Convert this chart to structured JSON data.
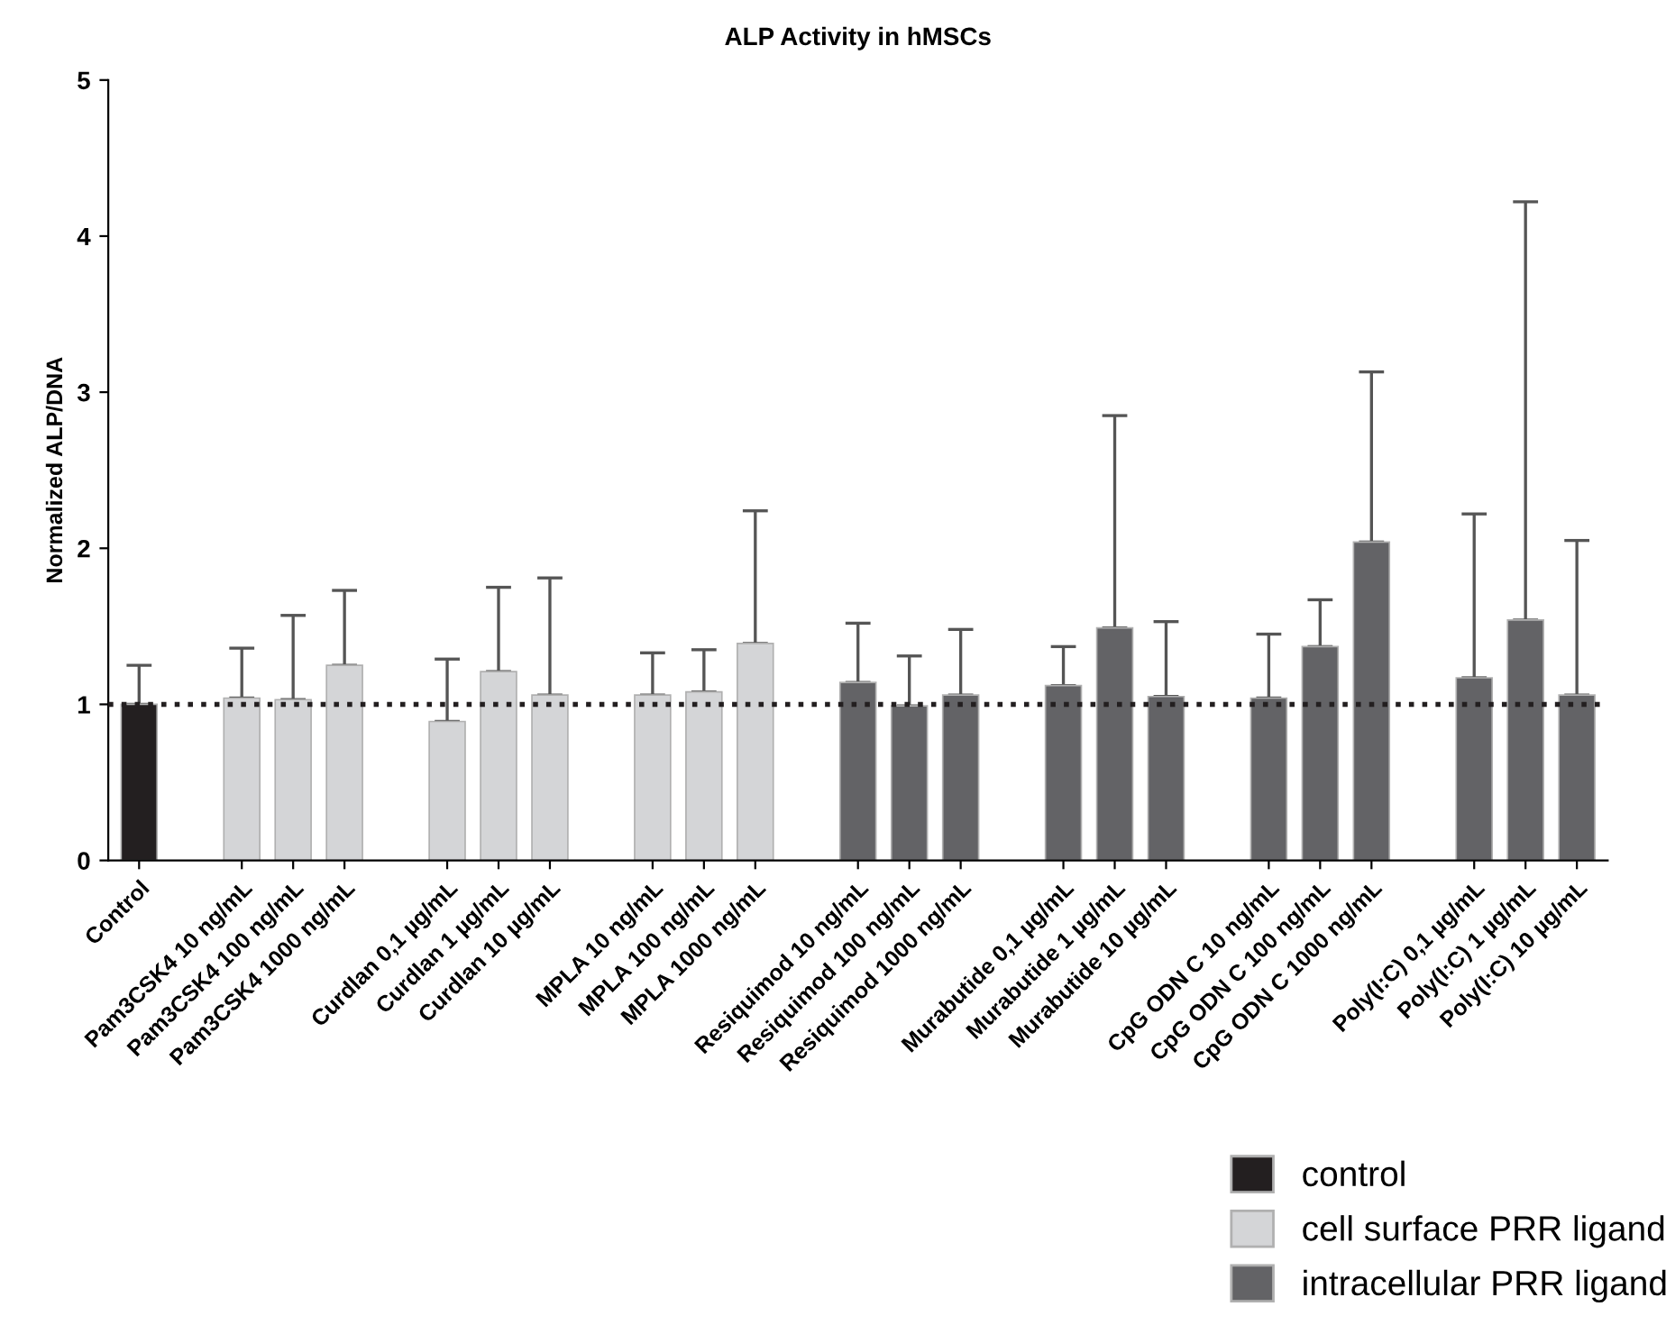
{
  "chart_data": {
    "type": "bar",
    "title": "ALP Activity in hMSCs",
    "ylabel": "Normalized ALP/DNA",
    "categories": [
      "Control",
      null,
      "Pam3CSK4 10 ng/mL",
      "Pam3CSK4 100 ng/mL",
      "Pam3CSK4 1000 ng/mL",
      null,
      "Curdlan 0,1 µg/mL",
      "Curdlan 1 µg/mL",
      "Curdlan 10 µg/mL",
      null,
      "MPLA 10 ng/mL",
      "MPLA 100 ng/mL",
      "MPLA 1000 ng/mL",
      null,
      "Resiquimod 10 ng/mL",
      "Resiquimod 100 ng/mL",
      "Resiquimod 1000 ng/mL",
      null,
      "Murabutide 0,1 µg/mL",
      "Murabutide 1 µg/mL",
      "Murabutide 10 µg/mL",
      null,
      "CpG ODN C 10 ng/mL",
      "CpG ODN C 100 ng/mL",
      "CpG ODN C 1000 ng/mL",
      null,
      "Poly(I:C) 0,1 µg/mL",
      "Poly(I:C) 1 µg/mL",
      "Poly(I:C) 10 µg/mL"
    ],
    "series": [
      {
        "name": "control",
        "color": "#231f20",
        "values": [
          1.0,
          null,
          null,
          null,
          null,
          null,
          null,
          null,
          null,
          null,
          null,
          null,
          null,
          null,
          null,
          null,
          null,
          null,
          null,
          null,
          null,
          null,
          null,
          null,
          null,
          null,
          null,
          null,
          null
        ],
        "errors": [
          [
            1.0,
            1.25
          ],
          null,
          null,
          null,
          null,
          null,
          null,
          null,
          null,
          null,
          null,
          null,
          null,
          null,
          null,
          null,
          null,
          null,
          null,
          null,
          null,
          null,
          null,
          null,
          null,
          null,
          null,
          null,
          null
        ]
      },
      {
        "name": "cell surface PRR ligand",
        "color": "#d4d5d7",
        "values": [
          null,
          null,
          1.04,
          1.03,
          1.25,
          null,
          0.89,
          1.21,
          1.06,
          null,
          1.06,
          1.08,
          1.39,
          null,
          null,
          null,
          null,
          null,
          null,
          null,
          null,
          null,
          null,
          null,
          null,
          null,
          null,
          null,
          null
        ],
        "errors": [
          null,
          null,
          [
            1.04,
            1.36
          ],
          [
            1.03,
            1.57
          ],
          [
            1.25,
            1.73
          ],
          null,
          [
            0.89,
            1.29
          ],
          [
            1.21,
            1.75
          ],
          [
            1.06,
            1.81
          ],
          null,
          [
            1.06,
            1.33
          ],
          [
            1.08,
            1.35
          ],
          [
            1.39,
            2.24
          ],
          null,
          null,
          null,
          null,
          null,
          null,
          null,
          null,
          null,
          null,
          null,
          null,
          null,
          null,
          null,
          null
        ]
      },
      {
        "name": "intracellular PRR ligand",
        "color": "#636366",
        "values": [
          null,
          null,
          null,
          null,
          null,
          null,
          null,
          null,
          null,
          null,
          null,
          null,
          null,
          null,
          1.14,
          0.99,
          1.06,
          null,
          1.12,
          1.49,
          1.05,
          null,
          1.04,
          1.37,
          2.04,
          null,
          1.17,
          1.54,
          1.06
        ],
        "errors": [
          null,
          null,
          null,
          null,
          null,
          null,
          null,
          null,
          null,
          null,
          null,
          null,
          null,
          null,
          [
            1.14,
            1.52
          ],
          [
            0.99,
            1.31
          ],
          [
            1.06,
            1.48
          ],
          null,
          [
            1.12,
            1.37
          ],
          [
            1.49,
            2.85
          ],
          [
            1.05,
            1.53
          ],
          null,
          [
            1.04,
            1.45
          ],
          [
            1.37,
            1.67
          ],
          [
            2.04,
            3.13
          ],
          null,
          [
            1.17,
            2.22
          ],
          [
            1.54,
            4.22
          ],
          [
            1.06,
            2.05
          ]
        ]
      }
    ],
    "ylim": [
      0,
      5
    ],
    "yticks": [
      0,
      1,
      2,
      3,
      4,
      5
    ],
    "grid": false,
    "legend": "bottom right",
    "ref_lines": [
      {
        "axis": "y",
        "value": 1,
        "color": "#231f20",
        "line_style": "dotted"
      }
    ]
  }
}
